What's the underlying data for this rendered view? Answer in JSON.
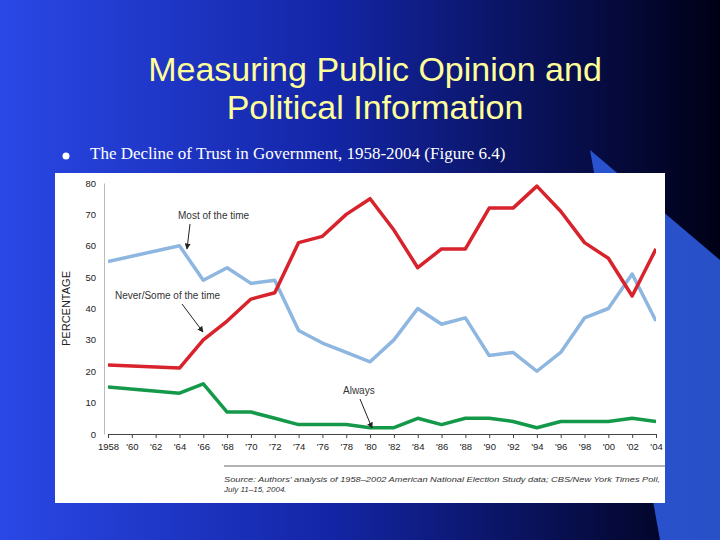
{
  "chart_data": {
    "type": "line",
    "title": "Measuring Public Opinion and Political Information",
    "subtitle": "The Decline of Trust in Government, 1958-2004 (Figure 6.4)",
    "y_label": "PERCENTAGE",
    "annotations": [
      "Most of the time",
      "Never/Some of the time",
      "Always"
    ],
    "source": [
      "Source: Authors' analysis of 1958–2002 American National Election Study data; CBS/New York Times Poll,",
      "July 11–15, 2004."
    ],
    "x": [
      1958,
      1964,
      1966,
      1968,
      1970,
      1972,
      1974,
      1976,
      1978,
      1980,
      1982,
      1984,
      1986,
      1988,
      1990,
      1992,
      1994,
      1996,
      1998,
      2000,
      2002,
      2004
    ],
    "series": [
      {
        "name": "Most of the time",
        "color": "#8db6e0",
        "values": [
          55,
          60,
          49,
          53,
          48,
          49,
          33,
          29,
          26,
          23,
          30,
          40,
          35,
          37,
          25,
          26,
          20,
          26,
          37,
          40,
          51,
          36
        ]
      },
      {
        "name": "Never/Some of the time",
        "color": "#d8222c",
        "values": [
          22,
          21,
          30,
          36,
          43,
          45,
          61,
          63,
          70,
          75,
          65,
          53,
          59,
          59,
          72,
          72,
          79,
          71,
          61,
          56,
          44,
          59
        ]
      },
      {
        "name": "Always",
        "color": "#14994a",
        "values": [
          15,
          13,
          16,
          7,
          7,
          5,
          3,
          3,
          3,
          2,
          2,
          5,
          3,
          5,
          5,
          4,
          2,
          4,
          4,
          4,
          5,
          4
        ]
      }
    ],
    "xlim": [
      1958,
      2004
    ],
    "xticks": [
      1958,
      {
        "value": 1960,
        "label": "'60"
      },
      {
        "value": 1962,
        "label": "'62"
      },
      {
        "value": 1964,
        "label": "'64"
      },
      {
        "value": 1966,
        "label": "'66"
      },
      {
        "value": 1968,
        "label": "'68"
      },
      {
        "value": 1970,
        "label": "'70"
      },
      {
        "value": 1972,
        "label": "'72"
      },
      {
        "value": 1974,
        "label": "'74"
      },
      {
        "value": 1976,
        "label": "'76"
      },
      {
        "value": 1978,
        "label": "'78"
      },
      {
        "value": 1980,
        "label": "'80"
      },
      {
        "value": 1982,
        "label": "'82"
      },
      {
        "value": 1984,
        "label": "'84"
      },
      {
        "value": 1986,
        "label": "'86"
      },
      {
        "value": 1988,
        "label": "'88"
      },
      {
        "value": 1990,
        "label": "'90"
      },
      {
        "value": 1992,
        "label": "'92"
      },
      {
        "value": 1994,
        "label": "'94"
      },
      {
        "value": 1996,
        "label": "'96"
      },
      {
        "value": 1998,
        "label": "'98"
      },
      {
        "value": 2000,
        "label": "'00"
      },
      {
        "value": 2002,
        "label": "'02"
      },
      {
        "value": 2004,
        "label": "'04"
      }
    ],
    "ylim": [
      0,
      80
    ],
    "yticks": [
      0,
      10,
      20,
      30,
      40,
      50,
      60,
      70,
      80
    ],
    "grid": false,
    "line_style": "solid"
  }
}
